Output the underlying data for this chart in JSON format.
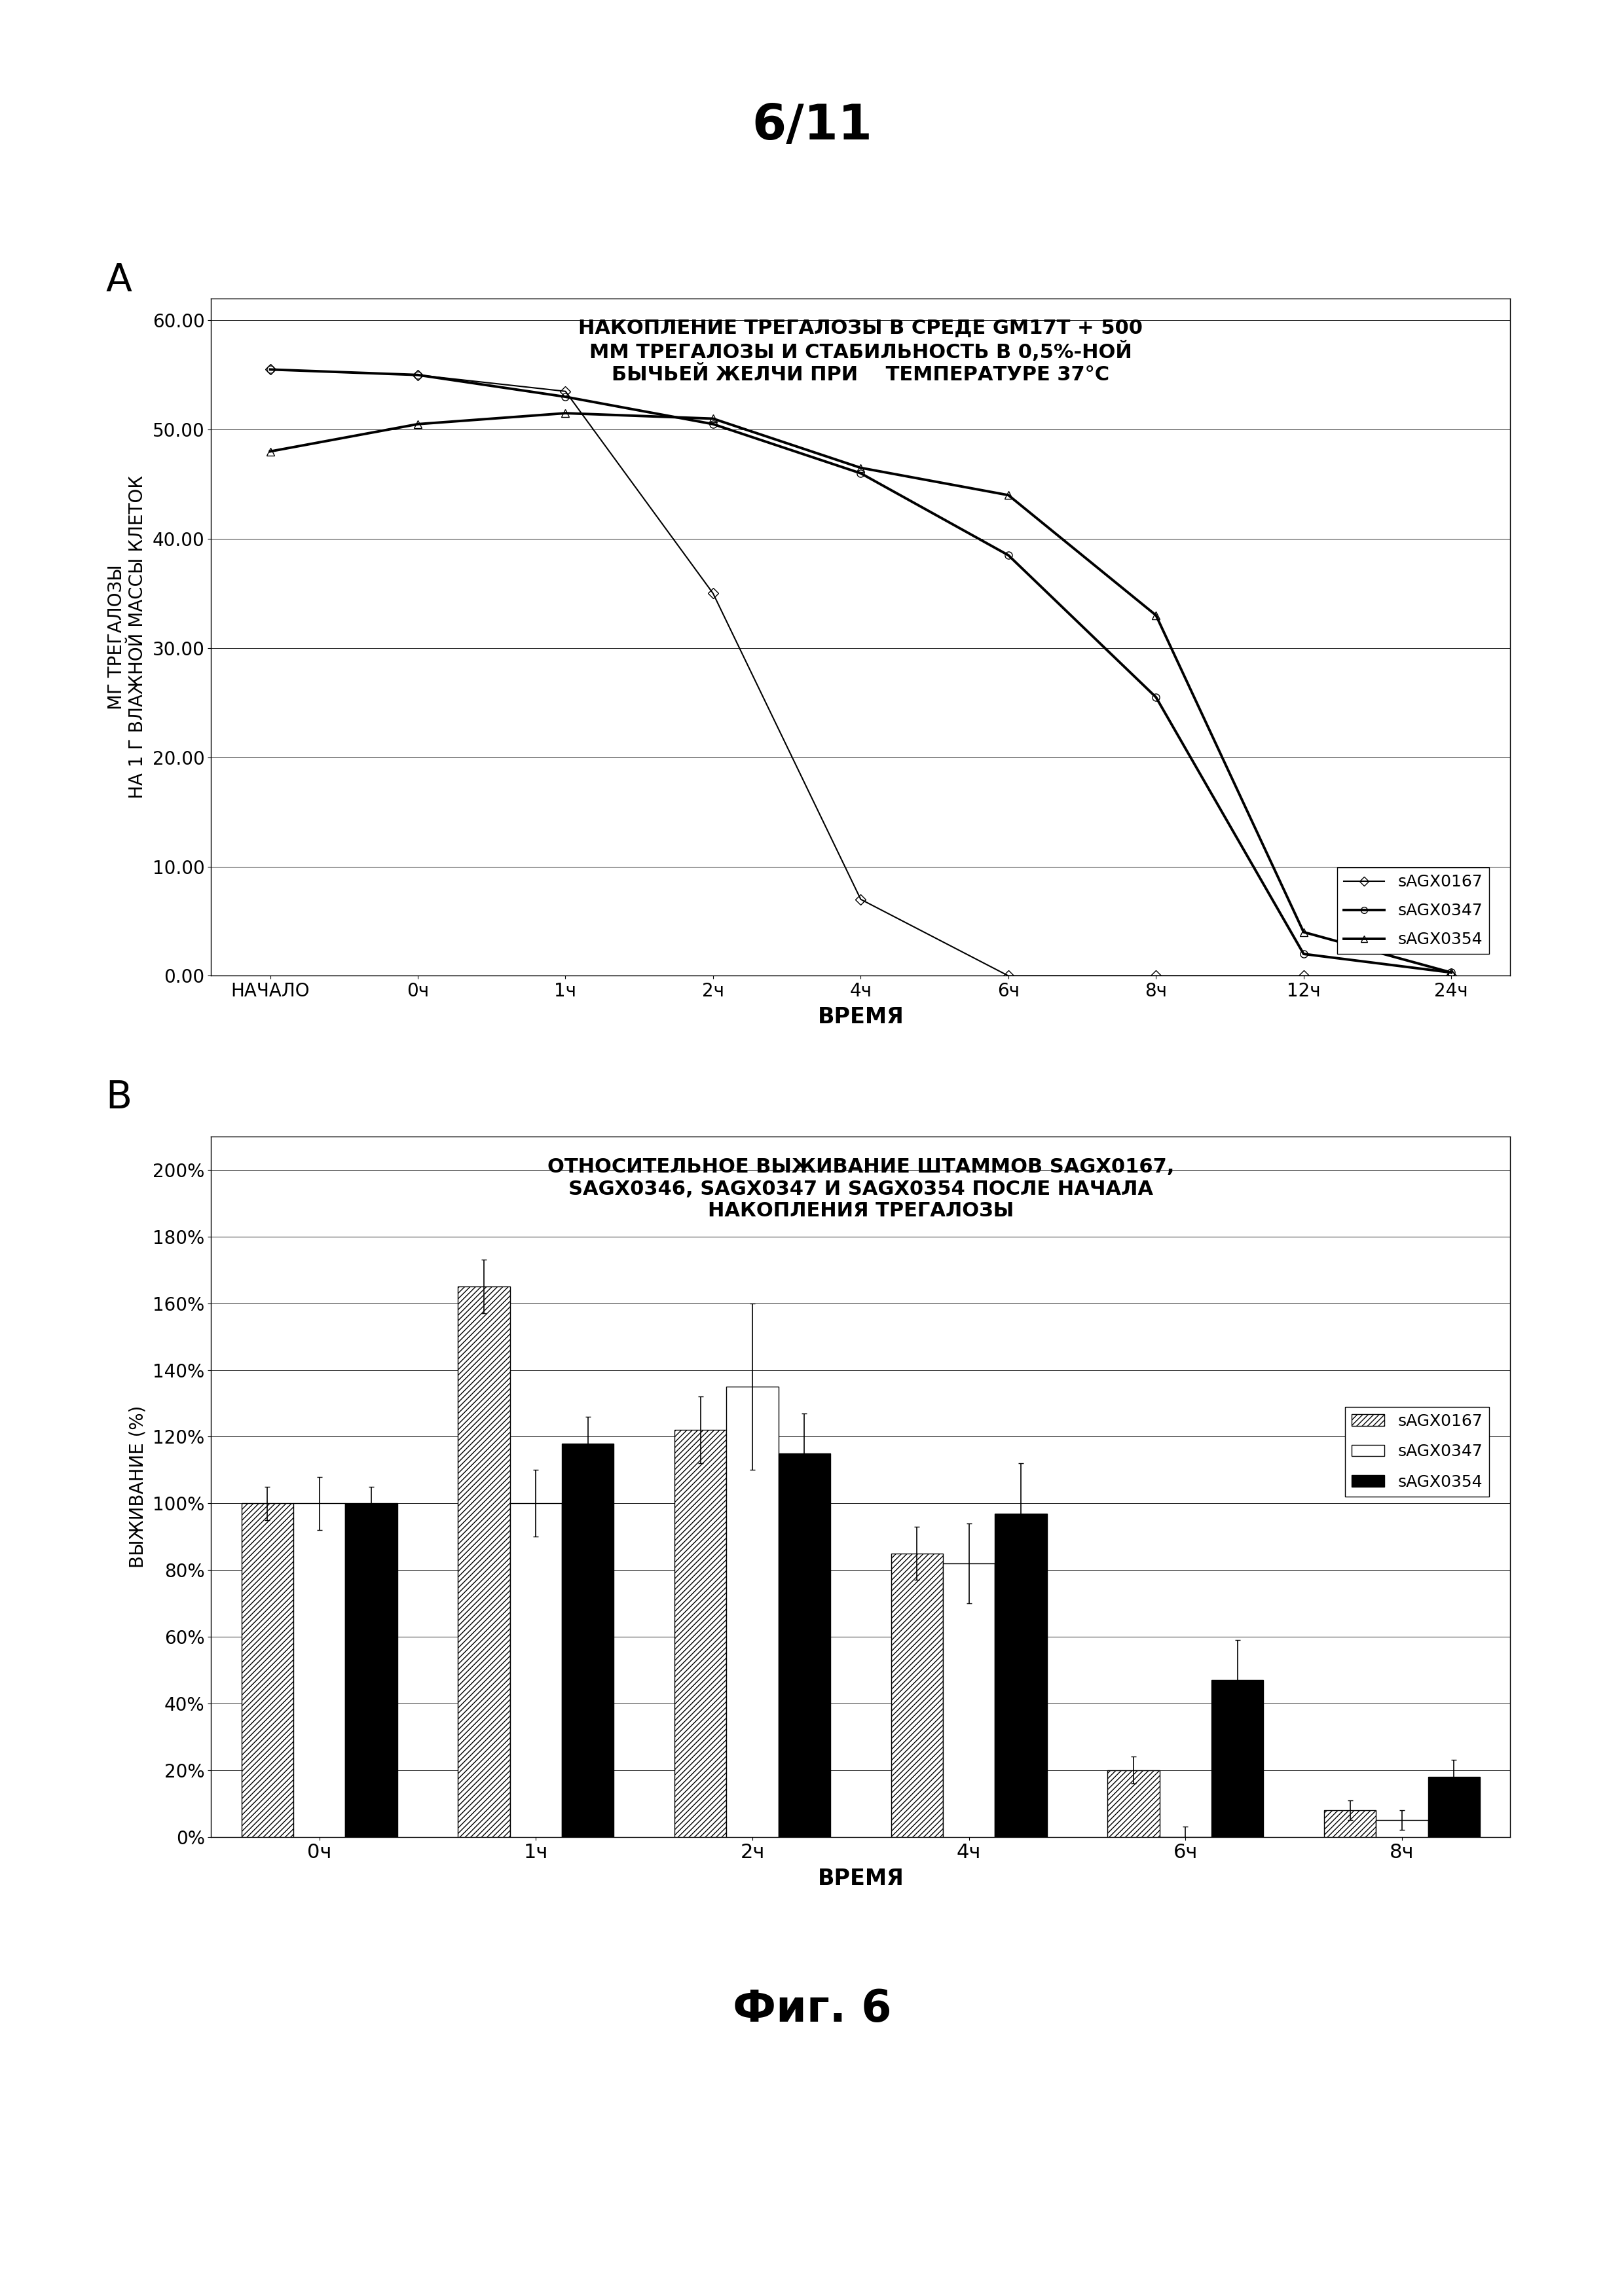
{
  "page_header": "6/11",
  "fig_caption": "Фиг. 6",
  "panel_a_label": "A",
  "panel_b_label": "B",
  "chart_a": {
    "title_lines": [
      "НАКОПЛЕНИЕ ТРЕГАЛОЗЫ В СРЕДЕ GM17T + 500",
      "ММ ТРЕГАЛОЗЫ И СТАБИЛЬНОСТЬ В 0,5%-НОЙ",
      "БЫЧЬЕЙ ЖЕЛЧИ ПРИ    ТЕМПЕРАТУРЕ 37°С"
    ],
    "xlabel": "ВРЕМЯ",
    "ylabel": "МГ ТРЕГАЛОЗЫ\nНА 1 Г ВЛАЖНОЙ МАССЫ КЛЕТОК",
    "x_labels": [
      "НАЧАЛО",
      "0ч",
      "1ч",
      "2ч",
      "4ч",
      "6ч",
      "8ч",
      "12ч",
      "24ч"
    ],
    "ylim": [
      0,
      62
    ],
    "yticks": [
      0.0,
      10.0,
      20.0,
      30.0,
      40.0,
      50.0,
      60.0
    ],
    "series": [
      {
        "label": "sAGX0167",
        "x": [
          0,
          1,
          2,
          3,
          4,
          5,
          6,
          7,
          8
        ],
        "y": [
          55.5,
          55.0,
          53.5,
          35.0,
          7.0,
          0.0,
          0.0,
          0.0,
          0.0
        ],
        "marker": "D",
        "linewidth": 1.5,
        "color": "black",
        "markersize": 8,
        "fillstyle": "none"
      },
      {
        "label": "sAGX0347",
        "x": [
          0,
          1,
          2,
          3,
          4,
          5,
          6,
          7,
          8
        ],
        "y": [
          55.5,
          55.0,
          53.0,
          50.5,
          46.0,
          38.5,
          25.5,
          2.0,
          0.3
        ],
        "marker": "o",
        "linewidth": 2.8,
        "color": "black",
        "markersize": 8,
        "fillstyle": "none"
      },
      {
        "label": "sAGX0354",
        "x": [
          0,
          1,
          2,
          3,
          4,
          5,
          6,
          7,
          8
        ],
        "y": [
          48.0,
          50.5,
          51.5,
          51.0,
          46.5,
          44.0,
          33.0,
          4.0,
          0.3
        ],
        "marker": "^",
        "linewidth": 2.8,
        "color": "black",
        "markersize": 8,
        "fillstyle": "none"
      }
    ]
  },
  "chart_b": {
    "title_lines": [
      "ОТНОСИТЕЛЬНОЕ ВЫЖИВАНИЕ ШТАММОВ SAGX0167,",
      "SAGX0346, SAGX0347 И SAGX0354 ПОСЛЕ НАЧАЛА",
      "НАКОПЛЕНИЯ ТРЕГАЛОЗЫ"
    ],
    "xlabel": "ВРЕМЯ",
    "ylabel": "ВЫЖИВАНИЕ (%)",
    "x_labels": [
      "0ч",
      "1ч",
      "2ч",
      "4ч",
      "6ч",
      "8ч"
    ],
    "ylim": [
      0,
      210
    ],
    "ytick_vals": [
      0,
      20,
      40,
      60,
      80,
      100,
      120,
      140,
      160,
      180,
      200
    ],
    "ytick_labels": [
      "0%",
      "20%",
      "40%",
      "60%",
      "80%",
      "100%",
      "120%",
      "140%",
      "160%",
      "180%",
      "200%"
    ],
    "series": [
      {
        "label": "sAGX0167",
        "values": [
          100,
          165,
          122,
          85,
          20,
          8
        ],
        "errors": [
          5,
          8,
          10,
          8,
          4,
          3
        ],
        "hatch": "////",
        "color": "white",
        "edgecolor": "black"
      },
      {
        "label": "sAGX0347",
        "values": [
          100,
          100,
          135,
          82,
          0,
          5
        ],
        "errors": [
          8,
          10,
          25,
          12,
          3,
          3
        ],
        "hatch": "",
        "color": "white",
        "edgecolor": "black"
      },
      {
        "label": "sAGX0354",
        "values": [
          100,
          118,
          115,
          97,
          47,
          18
        ],
        "errors": [
          5,
          8,
          12,
          15,
          12,
          5
        ],
        "hatch": "",
        "color": "black",
        "edgecolor": "black"
      }
    ]
  },
  "background_color": "#ffffff",
  "plot_bg_color": "#ffffff"
}
